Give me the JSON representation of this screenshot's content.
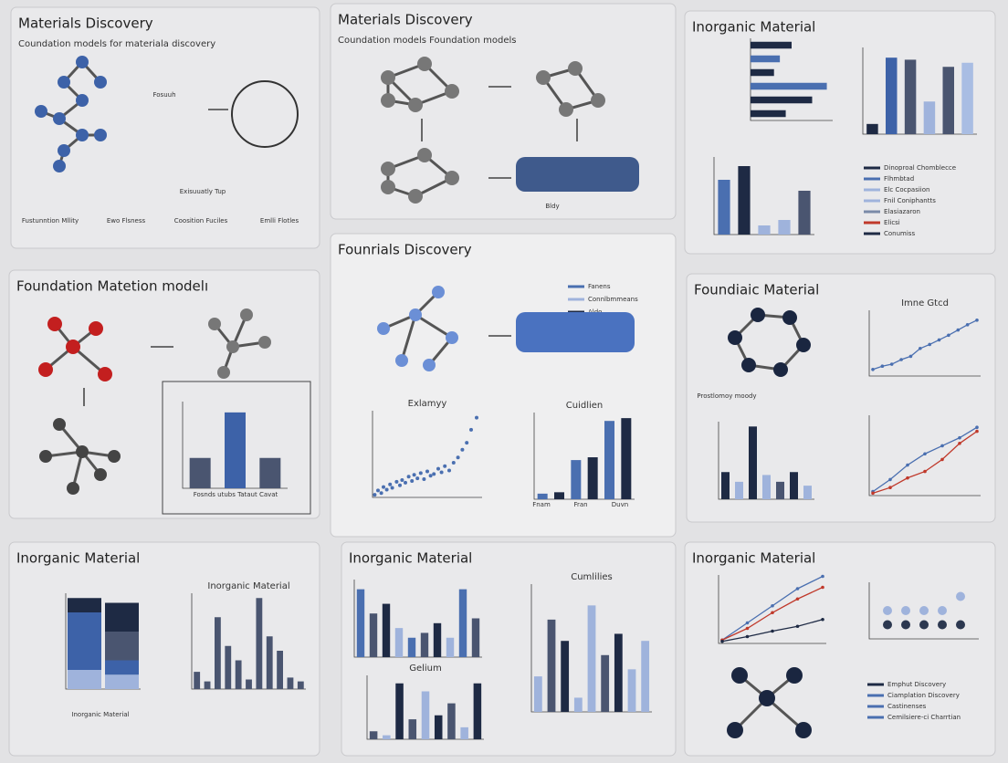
{
  "panels": [
    {
      "title": "Materials Discovery",
      "subtitle": "Coundation models for materiala discovery",
      "labels": [
        "Fosuuh",
        "Exisuuatly Tup",
        "Fustunntion Mllity",
        "Ewo Flsness",
        "Coosition Fuciles",
        "Emlli Flotles"
      ]
    },
    {
      "title": "Materials Discovery",
      "subtitle": "Coundation models Foundation models",
      "labels": [
        "Bldy"
      ]
    },
    {
      "title": "Inorganic Material",
      "charts": [
        {
          "type": "hbar",
          "values": [
            14,
            10,
            8,
            26,
            21,
            12
          ],
          "colors": [
            "#1e2a44",
            "#4a6fb0",
            "#1e2a44",
            "#4a6fb0",
            "#1e2a44",
            "#1e2a44"
          ],
          "ylim": [
            0,
            28
          ]
        },
        {
          "type": "bar",
          "values": [
            10,
            75,
            73,
            32,
            66,
            70
          ],
          "colors": [
            "#1e2a44",
            "#3d62a8",
            "#4a5570",
            "#9fb3dc",
            "#4a5570",
            "#a9bde3"
          ],
          "ylim": [
            0,
            85
          ]
        },
        {
          "type": "bar",
          "values": [
            60,
            75,
            10,
            16,
            48
          ],
          "colors": [
            "#4a6fb0",
            "#1e2a44",
            "#9fb3dc",
            "#9fb3dc",
            "#4a5570"
          ],
          "ylim": [
            0,
            85
          ]
        }
      ],
      "legend": [
        {
          "name": "Dinoproal Chomblecce",
          "color": "#1e2a44"
        },
        {
          "name": "Flhmbtad",
          "color": "#4a6fb0"
        },
        {
          "name": "Elc Cocpasiion",
          "color": "#9fb3dc"
        },
        {
          "name": "Fnil Coniphantts",
          "color": "#9fb3dc"
        },
        {
          "name": "Elasiazaron",
          "color": "#7a8aa8"
        },
        {
          "name": "Elicsi",
          "color": "#c0392b"
        },
        {
          "name": "Conumiss",
          "color": "#1e2a44"
        }
      ]
    },
    {
      "title": "Foundation Matetion modelı",
      "charts": [
        {
          "type": "bar",
          "values": [
            28,
            70,
            28
          ],
          "colors": [
            "#4a5570",
            "#3d62a8",
            "#4a5570"
          ],
          "ylim": [
            0,
            80
          ]
        }
      ],
      "labels": [
        "Fosnds utubs Tataut Cavat"
      ]
    },
    {
      "title": "Founrials Discovery",
      "legend": [
        {
          "name": "Fanens",
          "color": "#4a6fb0"
        },
        {
          "name": "Connlbmmeans",
          "color": "#9fb3dc"
        },
        {
          "name": "Aldo",
          "color": "#1e2a44"
        }
      ],
      "charts": [
        {
          "type": "scatter",
          "title": "Exlamyy",
          "x": [
            2,
            5,
            8,
            10,
            13,
            16,
            18,
            22,
            25,
            27,
            30,
            33,
            36,
            38,
            41,
            44,
            47,
            50,
            53,
            56,
            60,
            63,
            66,
            70,
            74,
            78,
            82,
            86,
            90,
            95
          ],
          "y": [
            3,
            8,
            5,
            12,
            9,
            15,
            11,
            18,
            14,
            20,
            17,
            24,
            19,
            26,
            22,
            28,
            21,
            30,
            25,
            27,
            33,
            29,
            36,
            31,
            40,
            46,
            55,
            63,
            78,
            92
          ],
          "xlim": [
            0,
            100
          ],
          "ylim": [
            0,
            100
          ]
        },
        {
          "type": "bar",
          "title": "Cuidlien",
          "values": [
            4,
            5,
            28,
            30,
            56,
            58
          ],
          "colors": [
            "#4a6fb0",
            "#1e2a44",
            "#4a6fb0",
            "#1e2a44",
            "#4a6fb0",
            "#1e2a44"
          ],
          "ylim": [
            0,
            62
          ]
        }
      ],
      "labels": [
        "Fnam",
        "Fran",
        "Duvn"
      ]
    },
    {
      "title": "Foundiaic Material",
      "charts": [
        {
          "type": "line",
          "title": "Imne Gtcd",
          "series": [
            {
              "color": "#4a6fb0",
              "values": [
                10,
                15,
                18,
                25,
                30,
                42,
                48,
                55,
                62,
                70,
                78,
                85
              ]
            }
          ],
          "ylim": [
            0,
            100
          ]
        },
        {
          "type": "bar",
          "values": [
            28,
            18,
            75,
            25,
            18,
            28,
            14
          ],
          "colors": [
            "#1e2a44",
            "#9fb3dc",
            "#1e2a44",
            "#9fb3dc",
            "#4a5570",
            "#1e2a44",
            "#9fb3dc"
          ],
          "ylim": [
            0,
            80
          ]
        },
        {
          "type": "line",
          "series": [
            {
              "color": "#4a6fb0",
              "values": [
                5,
                20,
                38,
                52,
                62,
                72,
                85
              ]
            },
            {
              "color": "#c0392b",
              "values": [
                3,
                10,
                22,
                30,
                45,
                65,
                80
              ]
            }
          ],
          "ylim": [
            0,
            100
          ]
        }
      ],
      "labels": [
        "Prostlomoy moody"
      ]
    },
    {
      "title": "Inorganic Material",
      "charts": [
        {
          "type": "stacked",
          "series": [
            {
              "color": "#9fb3dc",
              "values": [
                20,
                15
              ]
            },
            {
              "color": "#3d62a8",
              "values": [
                60,
                15
              ]
            },
            {
              "color": "#4a5570",
              "values": [
                0,
                30
              ]
            },
            {
              "color": "#1e2a44",
              "values": [
                15,
                30
              ]
            }
          ],
          "ylim": [
            0,
            100
          ]
        },
        {
          "type": "bar",
          "title": "Inorganic Material",
          "values": [
            18,
            8,
            75,
            45,
            30,
            10,
            95,
            55,
            40,
            12,
            8
          ],
          "colors": [
            "#4a5570"
          ],
          "ylim": [
            0,
            100
          ]
        }
      ],
      "labels": [
        "Inorganic Material"
      ]
    },
    {
      "title": "Inorganic Material",
      "charts": [
        {
          "type": "bar",
          "values": [
            70,
            45,
            55,
            30,
            20,
            25,
            35,
            20,
            70,
            40
          ],
          "colors": [
            "#4a6fb0",
            "#4a5570",
            "#1e2a44",
            "#9fb3dc"
          ],
          "ylim": [
            0,
            80
          ]
        },
        {
          "type": "bar",
          "title": "Cumlilies",
          "values": [
            25,
            65,
            50,
            10,
            75,
            40,
            55,
            30,
            50
          ],
          "colors": [
            "#9fb3dc",
            "#4a5570",
            "#1e2a44",
            "#9fb3dc"
          ],
          "ylim": [
            0,
            90
          ]
        },
        {
          "type": "bar",
          "title": "Gelium",
          "values": [
            10,
            5,
            70,
            25,
            60,
            30,
            45,
            15,
            70
          ],
          "colors": [
            "#4a5570",
            "#9fb3dc",
            "#1e2a44"
          ],
          "ylim": [
            0,
            80
          ]
        }
      ]
    },
    {
      "title": "Inorganic Material",
      "charts": [
        {
          "type": "line",
          "series": [
            {
              "color": "#4a6fb0",
              "values": [
                5,
                30,
                55,
                80,
                98
              ]
            },
            {
              "color": "#c0392b",
              "values": [
                5,
                22,
                45,
                65,
                82
              ]
            },
            {
              "color": "#1e2a44",
              "values": [
                3,
                10,
                18,
                25,
                35
              ]
            }
          ],
          "ylim": [
            0,
            100
          ]
        },
        {
          "type": "dots",
          "x": [
            1,
            2,
            3,
            4,
            5,
            1,
            2,
            3,
            4,
            5
          ],
          "y": [
            1,
            1,
            1,
            1,
            1,
            2,
            2,
            2,
            2,
            3
          ],
          "colors": [
            "#2c3850",
            "#9fb3dc"
          ],
          "xlim": [
            0,
            6
          ],
          "ylim": [
            0,
            4
          ]
        }
      ],
      "legend": [
        {
          "name": "Emphut Discovery",
          "color": "#1e2a44"
        },
        {
          "name": "Ciamplation Discovery",
          "color": "#4a6fb0"
        },
        {
          "name": "Castinenses",
          "color": "#4a6fb0"
        },
        {
          "name": "Cemilsiere-ci Charrtian",
          "color": "#4a6fb0"
        }
      ]
    }
  ]
}
